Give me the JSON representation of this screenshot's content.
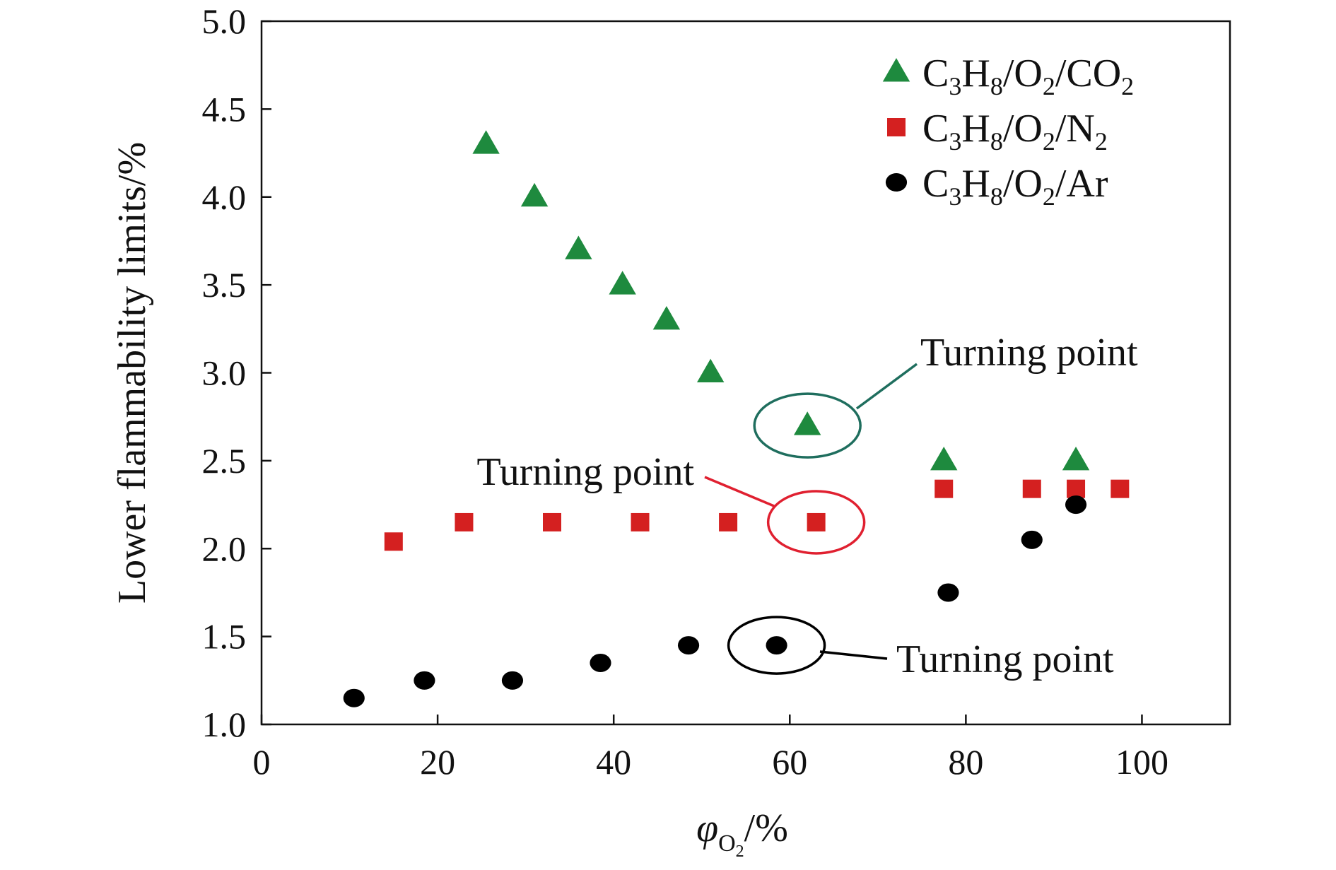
{
  "chart_data": {
    "type": "scatter",
    "xlabel": {
      "symbol": "φ",
      "subscript": "O",
      "subsubscript": "2",
      "unit": "/%"
    },
    "ylabel": "Lower flammability limits/%",
    "xlim": [
      0,
      110
    ],
    "ylim": [
      1.0,
      5.0
    ],
    "xticks": [
      0,
      20,
      40,
      60,
      80,
      100
    ],
    "yticks": [
      1.0,
      1.5,
      2.0,
      2.5,
      3.0,
      3.5,
      4.0,
      4.5,
      5.0
    ],
    "xtick_labels": [
      "0",
      "20",
      "40",
      "60",
      "80",
      "100"
    ],
    "ytick_labels": [
      "1.0",
      "1.5",
      "2.0",
      "2.5",
      "3.0",
      "3.5",
      "4.0",
      "4.5",
      "5.0"
    ],
    "grid": false,
    "legend_position": "top-right",
    "series": [
      {
        "name": "C3H8/O2/CO2",
        "marker": "triangle",
        "color": "#1e8a3e",
        "x": [
          25.5,
          31,
          36,
          41,
          46,
          51,
          62,
          77.5,
          92.5
        ],
        "y": [
          4.3,
          4.0,
          3.7,
          3.5,
          3.3,
          3.0,
          2.7,
          2.5,
          2.5
        ]
      },
      {
        "name": "C3H8/O2/N2",
        "marker": "square",
        "color": "#d42020",
        "x": [
          15,
          23,
          33,
          43,
          53,
          63,
          77.5,
          87.5,
          92.5,
          97.5
        ],
        "y": [
          2.04,
          2.15,
          2.15,
          2.15,
          2.15,
          2.15,
          2.34,
          2.34,
          2.34,
          2.34
        ]
      },
      {
        "name": "C3H8/O2/Ar",
        "marker": "circle",
        "color": "#000000",
        "x": [
          10.5,
          18.5,
          28.5,
          38.5,
          48.5,
          58.5,
          78,
          87.5,
          92.5
        ],
        "y": [
          1.15,
          1.25,
          1.25,
          1.35,
          1.45,
          1.45,
          1.75,
          2.05,
          2.25
        ]
      }
    ],
    "legend": [
      {
        "marker": "triangle",
        "color": "#1e8a3e",
        "a": "C",
        "a_sub": "3",
        "b": "H",
        "b_sub": "8",
        "c": "/O",
        "c_sub": "2",
        "d": "/CO",
        "d_sub": "2"
      },
      {
        "marker": "square",
        "color": "#d42020",
        "a": "C",
        "a_sub": "3",
        "b": "H",
        "b_sub": "8",
        "c": "/O",
        "c_sub": "2",
        "d": "/N",
        "d_sub": "2"
      },
      {
        "marker": "circle",
        "color": "#000000",
        "a": "C",
        "a_sub": "3",
        "b": "H",
        "b_sub": "8",
        "c": "/O",
        "c_sub": "2",
        "d": "/Ar",
        "d_sub": ""
      }
    ],
    "annotations": [
      {
        "text": "Turning point",
        "series": "C3H8/O2/CO2",
        "x": 62,
        "y": 2.7,
        "color": "#1f6e5e"
      },
      {
        "text": "Turning point",
        "series": "C3H8/O2/N2",
        "x": 63,
        "y": 2.15,
        "color": "#e02030"
      },
      {
        "text": "Turning point",
        "series": "C3H8/O2/Ar",
        "x": 58.5,
        "y": 1.45,
        "color": "#000000"
      }
    ]
  }
}
